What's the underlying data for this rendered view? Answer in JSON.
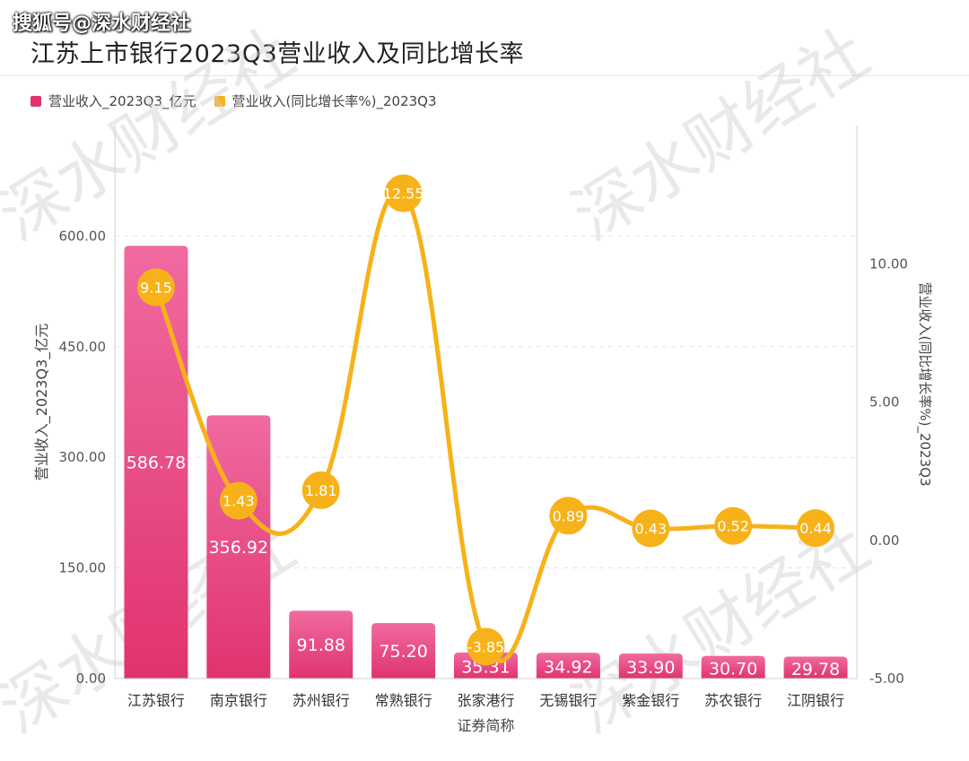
{
  "header": {
    "watermark": "搜狐号@深水财经社",
    "title": "江苏上市银行2023Q3营业收入及同比增长率"
  },
  "watermark_text": "深水财经社",
  "colors": {
    "bar_top": "#f06aa0",
    "bar_bottom": "#e0336f",
    "line": "#f7b21a",
    "bubble": "#f7b21a"
  },
  "chart_data": {
    "type": "bar",
    "title": "江苏上市银行2023Q3营业收入及同比增长率",
    "xlabel": "证券简称",
    "ylabel": "营业收入_2023Q3_亿元",
    "y2label": "营业收入(同比增长率%)_2023Q3",
    "categories": [
      "江苏银行",
      "南京银行",
      "苏州银行",
      "常熟银行",
      "张家港行",
      "无锡银行",
      "紫金银行",
      "苏农银行",
      "江阴银行"
    ],
    "series": [
      {
        "name": "营业收入_2023Q3_亿元",
        "type": "bar",
        "axis": "left",
        "values": [
          586.78,
          356.92,
          91.88,
          75.2,
          35.31,
          34.92,
          33.9,
          30.7,
          29.78
        ],
        "labels": [
          "586.78",
          "356.92",
          "91.88",
          "75.20",
          "35.31",
          "34.92",
          "33.90",
          "30.70",
          "29.78"
        ]
      },
      {
        "name": "营业收入(同比增长率%)_2023Q3",
        "type": "line",
        "axis": "right",
        "values": [
          9.15,
          1.43,
          1.81,
          12.55,
          -3.85,
          0.89,
          0.43,
          0.52,
          0.44
        ],
        "labels": [
          "9.15",
          "1.43",
          "1.81",
          "12.55",
          "-3.85",
          "0.89",
          "0.43",
          "0.52",
          "0.44"
        ]
      }
    ],
    "ylim": [
      0,
      750
    ],
    "y2lim": [
      -5,
      15
    ],
    "yticks": [
      "0.00",
      "150.00",
      "300.00",
      "450.00",
      "600.00"
    ],
    "yticks_values": [
      0,
      150,
      300,
      450,
      600
    ],
    "y2ticks": [
      "-5.00",
      "0.00",
      "5.00",
      "10.00"
    ],
    "y2ticks_values": [
      -5,
      0,
      5,
      10
    ],
    "grid": true,
    "legend": "top-left"
  }
}
